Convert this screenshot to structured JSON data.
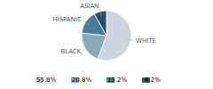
{
  "chart_data": {
    "type": "pie",
    "categories": [
      "WHITE",
      "BLACK",
      "HISPANIC",
      "ASIAN"
    ],
    "values": [
      55.8,
      20.8,
      15.2,
      8.2
    ],
    "value_labels": [
      "55.8%",
      "20.8%",
      "15.2%",
      "8.2%"
    ],
    "colors": [
      "#cdd6e0",
      "#8aaabb",
      "#4d7a96",
      "#2b4f6b"
    ],
    "legend": "bottom"
  }
}
